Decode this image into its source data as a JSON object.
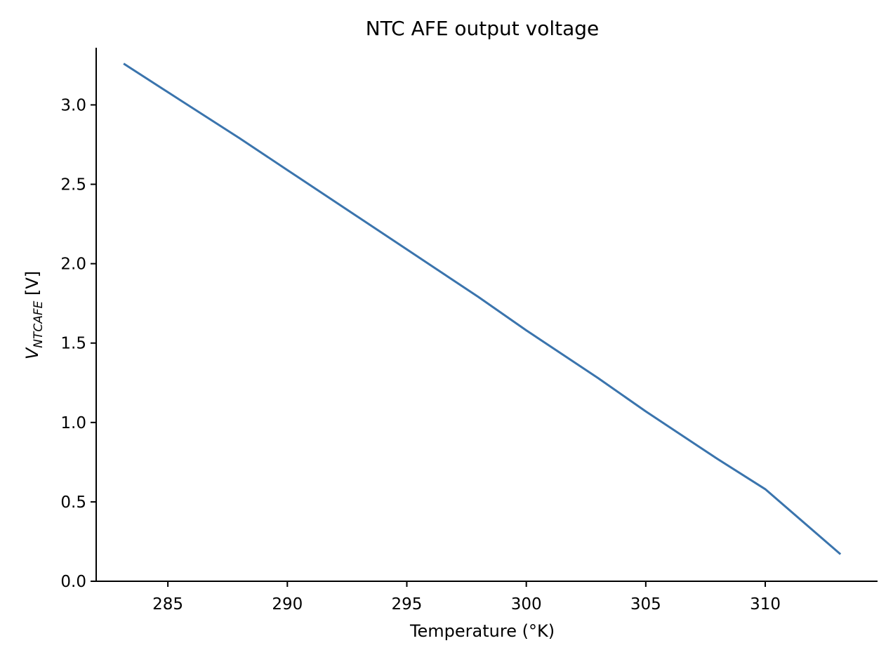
{
  "chart_data": {
    "type": "line",
    "title": "NTC AFE output voltage",
    "xlabel": "Temperature (°K)",
    "ylabel": {
      "base": "V",
      "subscript": "NTCAFE",
      "unit": " [V]"
    },
    "xlim": [
      282.0,
      314.7
    ],
    "ylim": [
      0.0,
      3.36
    ],
    "xticks": [
      285,
      290,
      295,
      300,
      305,
      310
    ],
    "xtick_labels": [
      "285",
      "290",
      "295",
      "300",
      "305",
      "310"
    ],
    "yticks": [
      0.0,
      0.5,
      1.0,
      1.5,
      2.0,
      2.5,
      3.0
    ],
    "ytick_labels": [
      "0.0",
      "0.5",
      "1.0",
      "1.5",
      "2.0",
      "2.5",
      "3.0"
    ],
    "grid": false,
    "series": [
      {
        "color": "#3a74ad",
        "x": [
          283.15,
          285,
          288,
          290,
          293,
          295,
          298,
          300,
          303,
          305,
          308,
          310,
          313.15
        ],
        "y": [
          3.26,
          3.08,
          2.79,
          2.59,
          2.29,
          2.09,
          1.79,
          1.58,
          1.28,
          1.07,
          0.77,
          0.58,
          0.17
        ]
      }
    ]
  }
}
